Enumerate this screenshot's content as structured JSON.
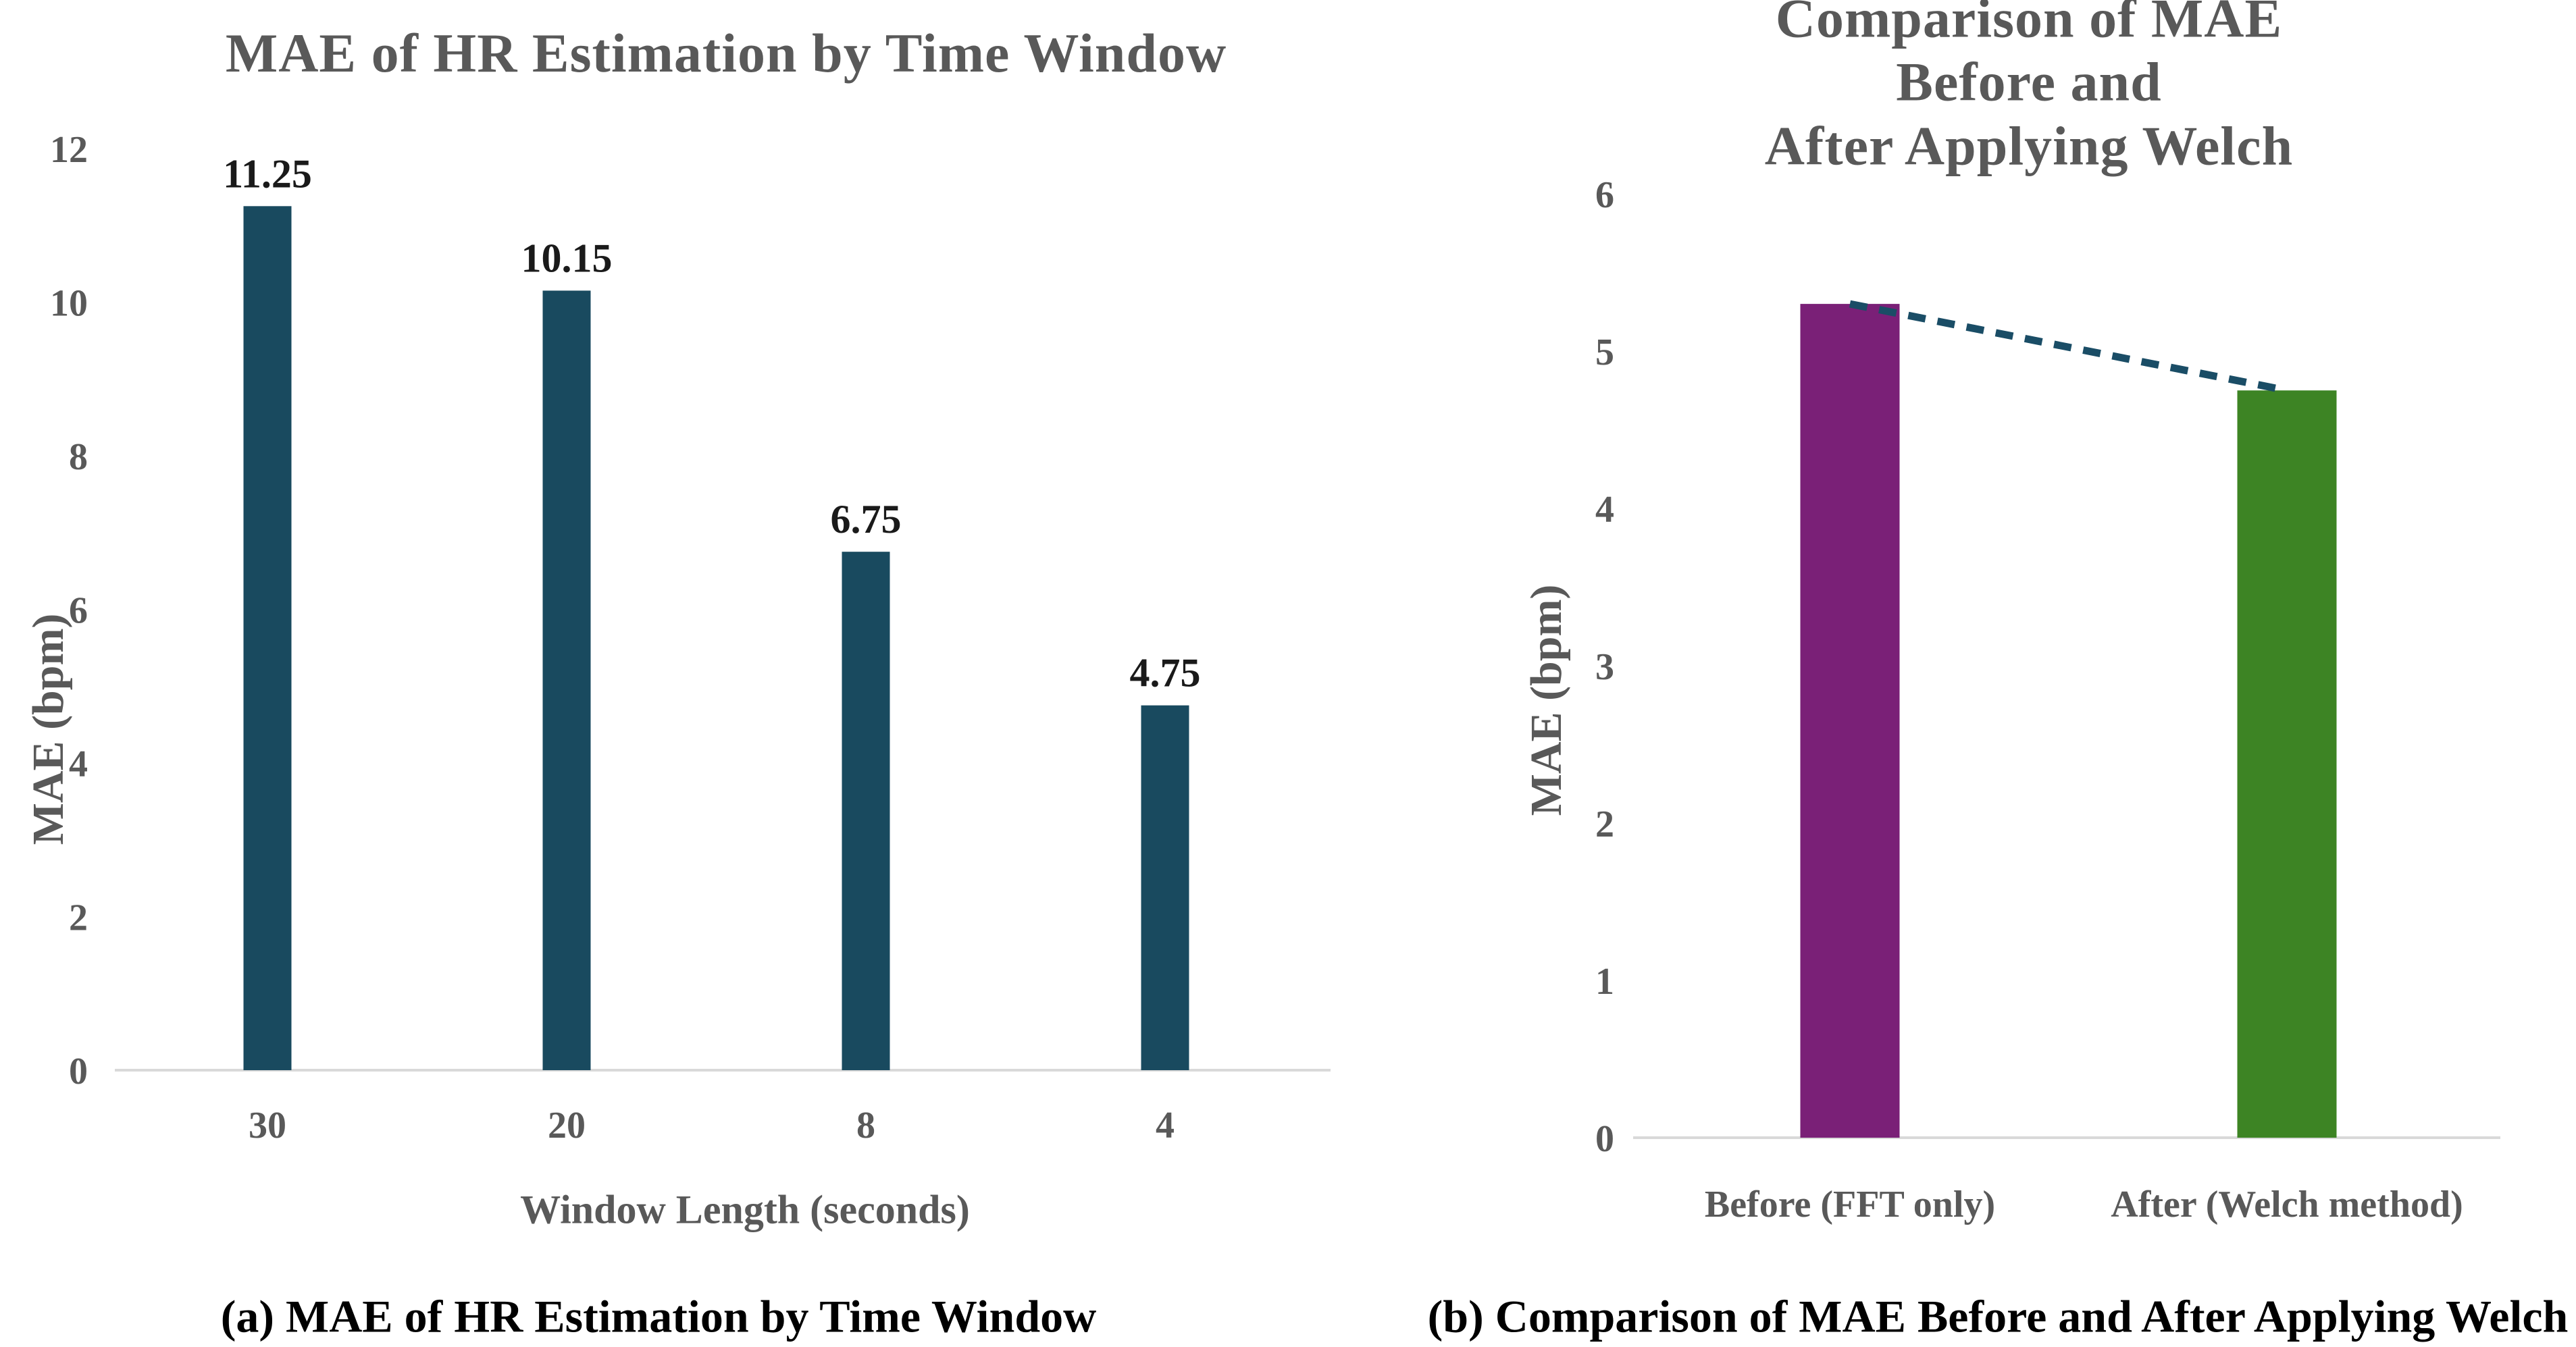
{
  "figure": {
    "background": "#ffffff",
    "axis_text_color": "#595959",
    "caption_color": "#000000",
    "baseline_color": "#d9d9d9"
  },
  "chart_data": [
    {
      "type": "bar",
      "panel": "a",
      "title": "MAE of HR Estimation by Time Window",
      "xlabel": "Window Length (seconds)",
      "ylabel": "MAE (bpm)",
      "caption": "(a) MAE of HR Estimation by Time Window",
      "categories": [
        "30",
        "20",
        "8",
        "4"
      ],
      "values": [
        11.25,
        10.15,
        6.75,
        4.75
      ],
      "value_labels": [
        "11.25",
        "10.15",
        "6.75",
        "4.75"
      ],
      "yticks": [
        0,
        2,
        4,
        6,
        8,
        10,
        12
      ],
      "ylim": [
        0,
        12
      ],
      "bar_color": "#194A5F",
      "grid": false,
      "legend": "none"
    },
    {
      "type": "bar",
      "panel": "b",
      "title": "Comparison of MAE Before and\nAfter Applying Welch",
      "xlabel": "",
      "ylabel": "MAE (bpm)",
      "caption": "(b) Comparison of MAE Before and After Applying Welch",
      "categories": [
        "Before (FFT only)",
        "After (Welch method)"
      ],
      "values": [
        5.3,
        4.75
      ],
      "yticks": [
        0,
        1,
        2,
        3,
        4,
        5,
        6
      ],
      "ylim": [
        0,
        6
      ],
      "bar_colors": [
        "#7A2077",
        "#3D8424"
      ],
      "connector": {
        "show": true,
        "values": [
          5.3,
          4.75
        ],
        "color": "#1A4D66",
        "style": "dashed"
      },
      "grid": false,
      "legend": "none"
    }
  ]
}
